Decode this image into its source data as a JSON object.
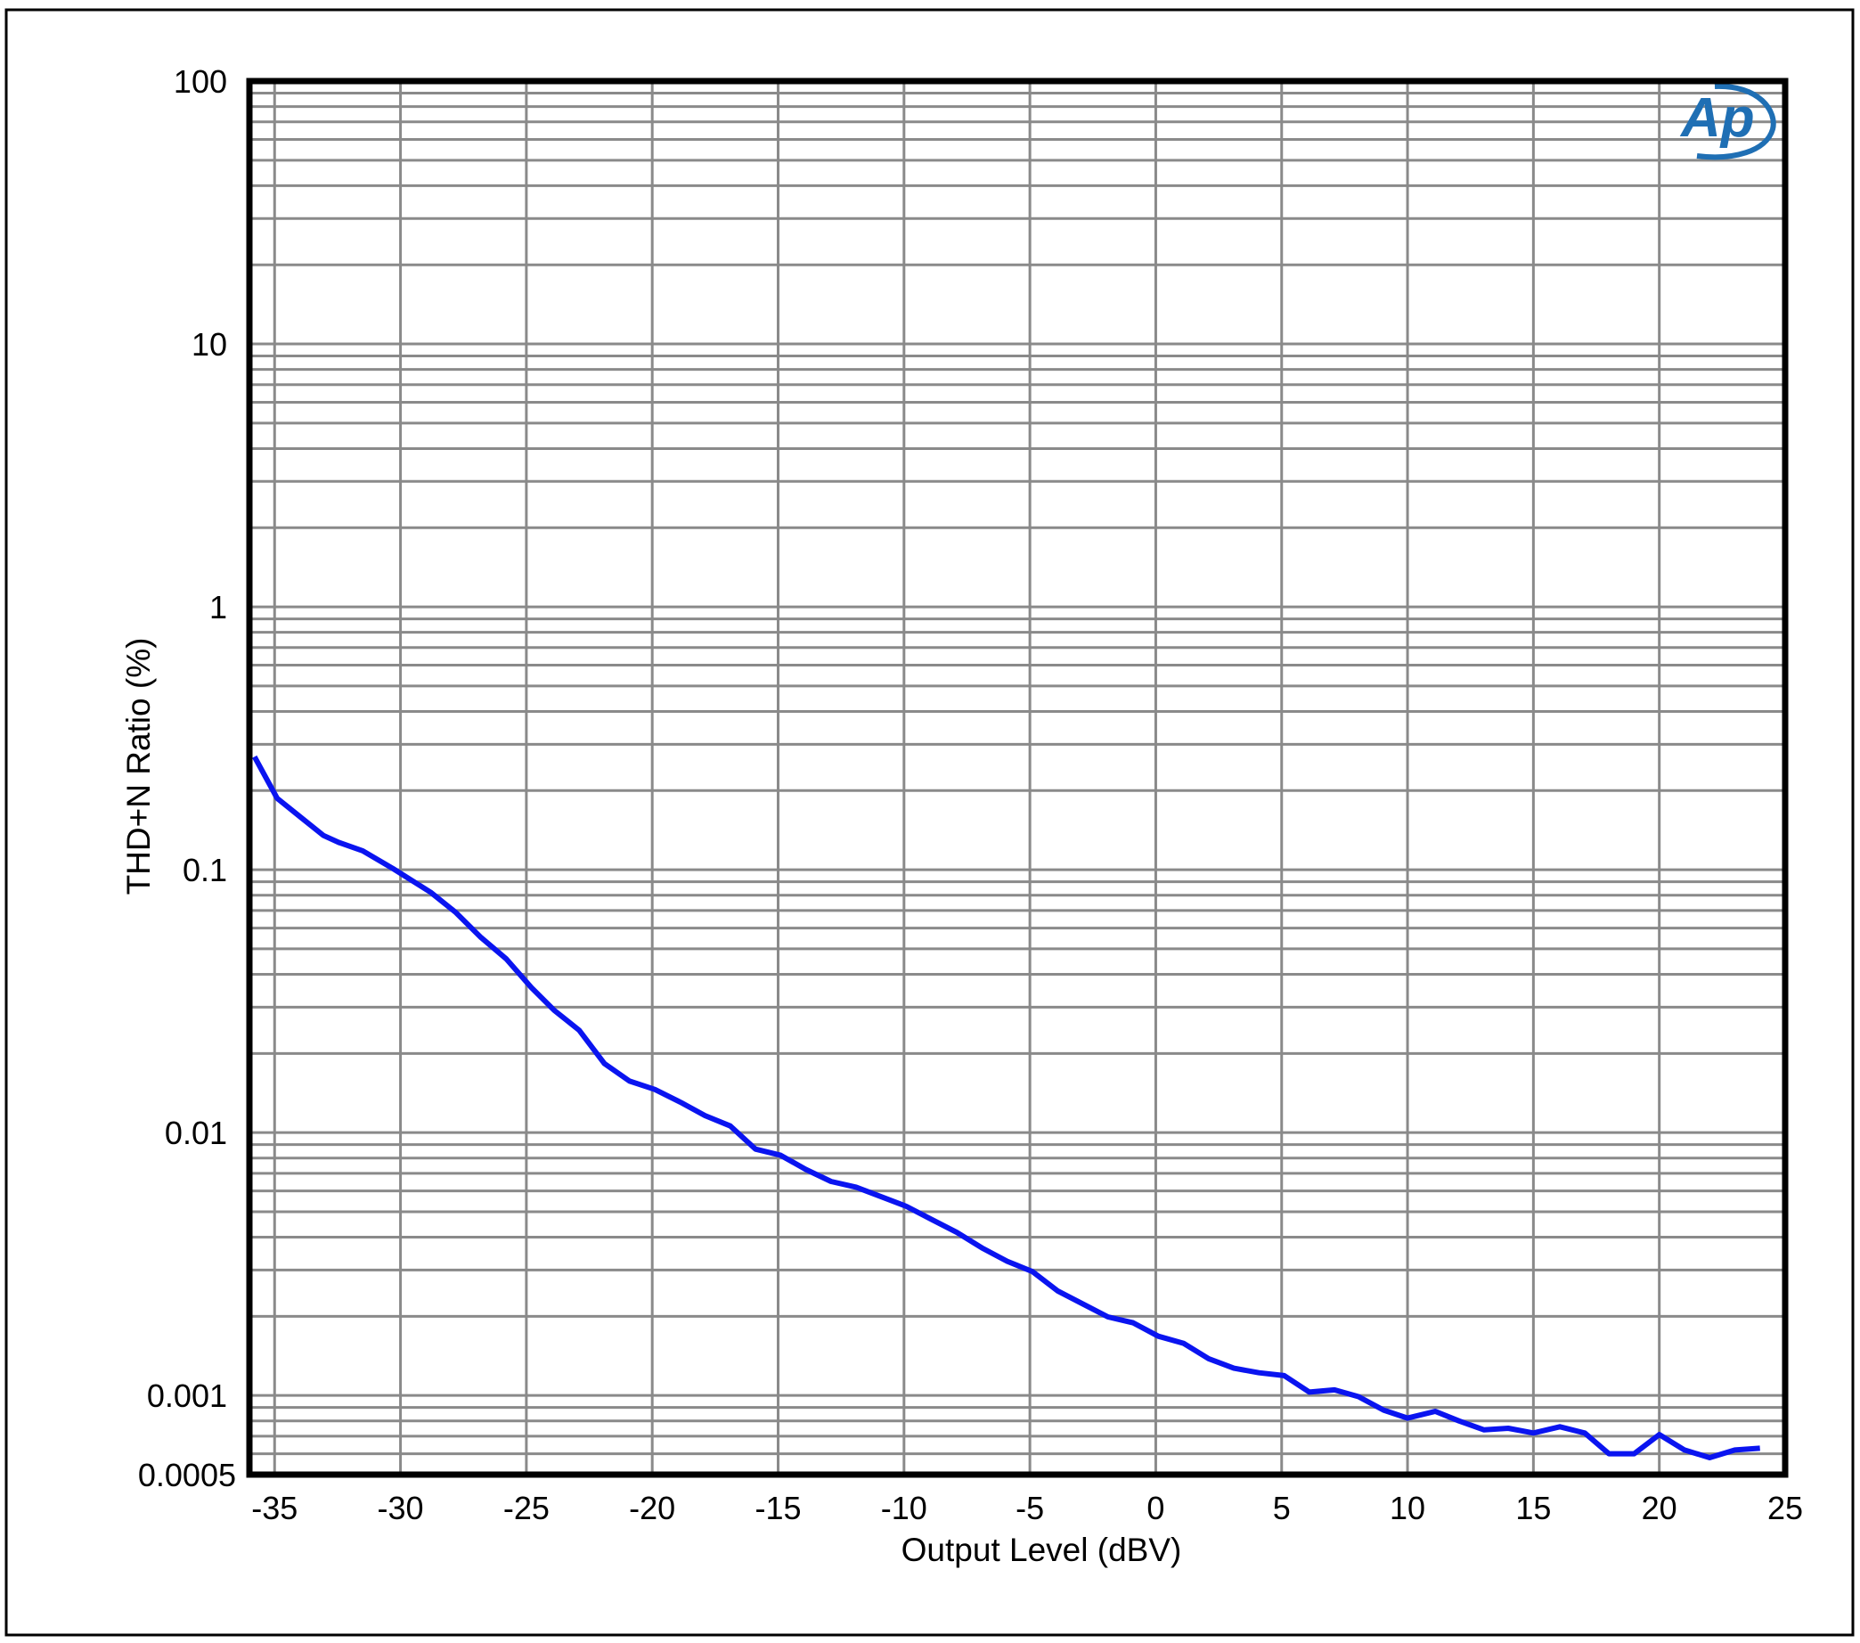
{
  "chart_data": {
    "type": "line",
    "title": "",
    "xlabel": "Output Level (dBV)",
    "ylabel": "THD+N Ratio (%)",
    "xlim": [
      -36,
      25
    ],
    "ylim": [
      0.0005,
      100
    ],
    "yscale": "log",
    "grid": true,
    "x_ticks": [
      -35,
      -30,
      -25,
      -20,
      -15,
      -10,
      -5,
      0,
      5,
      10,
      15,
      20,
      25
    ],
    "x_tick_labels": [
      "-35",
      "-30",
      "-25",
      "-20",
      "-15",
      "-10",
      "-5",
      "0",
      "5",
      "10",
      "15",
      "20",
      "25"
    ],
    "y_ticks": [
      100,
      10,
      1,
      0.1,
      0.01,
      0.001,
      0.0005
    ],
    "y_tick_labels": [
      "100",
      "10",
      "1",
      "0.1",
      "0.01",
      "0.001",
      "0.0005"
    ],
    "logo": "Ap",
    "colors": {
      "line": "#0a14f0",
      "grid": "#8a8a8a",
      "frame": "#000000",
      "logo": "#1f6fb4"
    },
    "series": [
      {
        "x": [
          -35.8,
          -34.9,
          -33.95,
          -33.06,
          -32.45,
          -31.5,
          -30.3,
          -28.8,
          -27.8,
          -26.8,
          -25.8,
          -24.8,
          -23.9,
          -22.9,
          -21.9,
          -20.9,
          -19.9,
          -18.85,
          -17.9,
          -16.9,
          -15.9,
          -14.9,
          -13.9,
          -12.9,
          -11.9,
          -10.9,
          -9.9,
          -8.9,
          -7.9,
          -6.9,
          -5.9,
          -4.9,
          -3.9,
          -2.9,
          -1.9,
          -0.9,
          0.1,
          1.1,
          2.1,
          3.1,
          4.1,
          5.1,
          6.1,
          7.1,
          8.05,
          9.05,
          10.0,
          11.1,
          12.05,
          13.04,
          14.0,
          15.0,
          16.05,
          17.04,
          18.0,
          19.0,
          20.0,
          21.0,
          22.0,
          23.0,
          24.0
        ],
        "y": [
          0.269,
          0.187,
          0.158,
          0.135,
          0.127,
          0.118,
          0.101,
          0.082,
          0.0687,
          0.0552,
          0.0458,
          0.0356,
          0.0292,
          0.0245,
          0.0183,
          0.0157,
          0.0146,
          0.013,
          0.0116,
          0.0106,
          0.00865,
          0.0082,
          0.00724,
          0.00652,
          0.0062,
          0.0057,
          0.00524,
          0.00467,
          0.00417,
          0.00364,
          0.00324,
          0.00296,
          0.0025,
          0.00223,
          0.00199,
          0.00189,
          0.00168,
          0.00158,
          0.00138,
          0.00127,
          0.00122,
          0.00119,
          0.00103,
          0.00105,
          0.00099,
          0.00088,
          0.00082,
          0.00087,
          0.0008,
          0.00074,
          0.00075,
          0.00072,
          0.00076,
          0.00072,
          0.0006,
          0.0006,
          0.00071,
          0.00062,
          0.00058,
          0.00062,
          0.00063
        ]
      }
    ]
  }
}
